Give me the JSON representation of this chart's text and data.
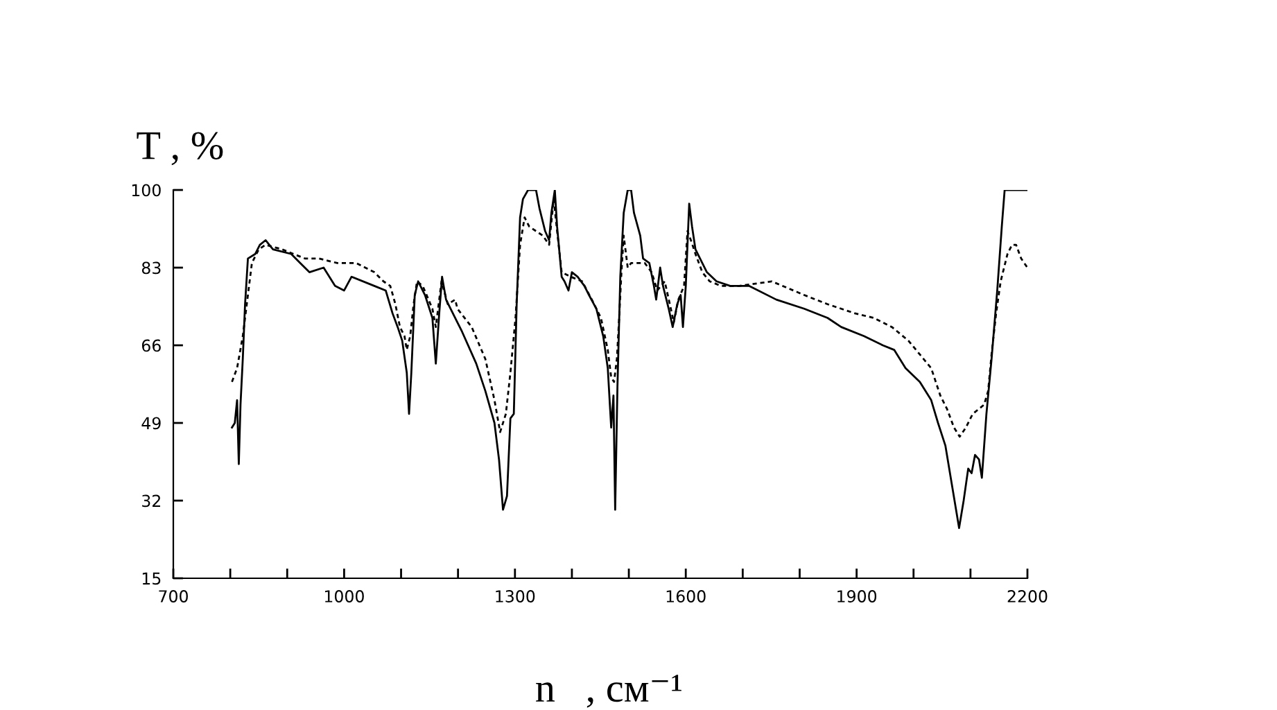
{
  "chart_data": {
    "type": "line",
    "xlabel": "n   , см⁻¹",
    "ylabel": "T , %",
    "xlim": [
      700,
      2200
    ],
    "ylim": [
      15,
      100
    ],
    "xticks": [
      700,
      {
        "value": 800,
        "label": null
      },
      {
        "value": 900,
        "label": null
      },
      1000,
      {
        "value": 1100,
        "label": null
      },
      {
        "value": 1200,
        "label": null
      },
      1300,
      {
        "value": 1400,
        "label": null
      },
      {
        "value": 1500,
        "label": null
      },
      1600,
      {
        "value": 1700,
        "label": null
      },
      {
        "value": 1800,
        "label": null
      },
      1900,
      {
        "value": 2000,
        "label": null
      },
      {
        "value": 2100,
        "label": null
      },
      2200
    ],
    "yticks": [
      15,
      32,
      49,
      66,
      83,
      100
    ],
    "series": [
      {
        "color": "#000000",
        "line_style": "solid",
        "x": [
          803,
          808,
          812,
          815,
          818,
          822,
          826,
          831,
          844,
          852,
          862,
          875,
          907,
          923,
          939,
          964,
          984,
          1000,
          1013,
          1053,
          1073,
          1085,
          1094,
          1102,
          1110,
          1114,
          1118,
          1124,
          1130,
          1142,
          1155,
          1161,
          1167,
          1172,
          1179,
          1187,
          1199,
          1207,
          1232,
          1248,
          1264,
          1272,
          1279,
          1286,
          1292,
          1298,
          1303,
          1309,
          1314,
          1323,
          1337,
          1343,
          1353,
          1360,
          1364,
          1370,
          1374,
          1382,
          1387,
          1394,
          1400,
          1410,
          1422,
          1430,
          1443,
          1455,
          1463,
          1469,
          1473,
          1476,
          1480,
          1485,
          1491,
          1498,
          1504,
          1509,
          1520,
          1525,
          1536,
          1544,
          1548,
          1555,
          1560,
          1570,
          1577,
          1585,
          1591,
          1595,
          1600,
          1606,
          1611,
          1617,
          1629,
          1637,
          1654,
          1678,
          1711,
          1759,
          1808,
          1849,
          1873,
          1913,
          1946,
          1966,
          1986,
          2011,
          2031,
          2043,
          2056,
          2068,
          2080,
          2088,
          2096,
          2102,
          2108,
          2115,
          2120,
          2128,
          2137,
          2147,
          2155,
          2160,
          2200
        ],
        "values": [
          48,
          49,
          54,
          40,
          53,
          63,
          75,
          85,
          86,
          88,
          89,
          87,
          86,
          84,
          82,
          83,
          79,
          78,
          81,
          79,
          78,
          73,
          70,
          67,
          60,
          51,
          60,
          77,
          80,
          77,
          72,
          62,
          73,
          81,
          76,
          74,
          71,
          69,
          62,
          56,
          49,
          41,
          30,
          33,
          50,
          51,
          75,
          94,
          98,
          100,
          100,
          96,
          91,
          89,
          95,
          100,
          92,
          81,
          80,
          78,
          82,
          81,
          79,
          77,
          74,
          68,
          61,
          48,
          55,
          30,
          57,
          81,
          95,
          100,
          100,
          95,
          90,
          85,
          84,
          79,
          76,
          83,
          79,
          74,
          70,
          75,
          77,
          70,
          79,
          97,
          92,
          87,
          84,
          82,
          80,
          79,
          79,
          76,
          74,
          72,
          70,
          68,
          66,
          65,
          61,
          58,
          54,
          49,
          44,
          35,
          26,
          32,
          39,
          38,
          42,
          41,
          37,
          51,
          63,
          78,
          92,
          100,
          100
        ]
      },
      {
        "color": "#000000",
        "line_style": "dashed",
        "x": [
          803,
          812,
          822,
          830,
          838,
          850,
          862,
          891,
          931,
          956,
          988,
          1021,
          1053,
          1069,
          1081,
          1090,
          1098,
          1106,
          1110,
          1116,
          1122,
          1128,
          1138,
          1155,
          1161,
          1171,
          1182,
          1195,
          1199,
          1224,
          1248,
          1264,
          1274,
          1284,
          1292,
          1301,
          1309,
          1317,
          1325,
          1337,
          1349,
          1360,
          1368,
          1374,
          1382,
          1398,
          1418,
          1435,
          1451,
          1463,
          1469,
          1474,
          1479,
          1483,
          1487,
          1491,
          1498,
          1504,
          1516,
          1528,
          1540,
          1550,
          1563,
          1572,
          1579,
          1587,
          1597,
          1603,
          1609,
          1617,
          1629,
          1642,
          1662,
          1694,
          1751,
          1808,
          1849,
          1897,
          1930,
          1962,
          1991,
          2011,
          2031,
          2047,
          2059,
          2071,
          2081,
          2092,
          2104,
          2124,
          2131,
          2137,
          2145,
          2153,
          2165,
          2173,
          2180,
          2189,
          2200
        ],
        "values": [
          58,
          61,
          68,
          76,
          84,
          87,
          88,
          87,
          85,
          85,
          84,
          84,
          82,
          80,
          79,
          75,
          70,
          68,
          65,
          68,
          75,
          80,
          79,
          74,
          70,
          80,
          75,
          76,
          74,
          70,
          63,
          54,
          47,
          51,
          60,
          72,
          88,
          94,
          92,
          91,
          90,
          88,
          98,
          91,
          82,
          81,
          80,
          76,
          72,
          65,
          59,
          58,
          63,
          72,
          82,
          90,
          83,
          84,
          84,
          84,
          82,
          78,
          80,
          75,
          71,
          76,
          79,
          91,
          89,
          86,
          82,
          80,
          79,
          79,
          80,
          77,
          75,
          73,
          72,
          70,
          67,
          64,
          61,
          55,
          52,
          48,
          46,
          48,
          51,
          53,
          56,
          64,
          73,
          80,
          86,
          88,
          88,
          85,
          83
        ]
      }
    ]
  }
}
